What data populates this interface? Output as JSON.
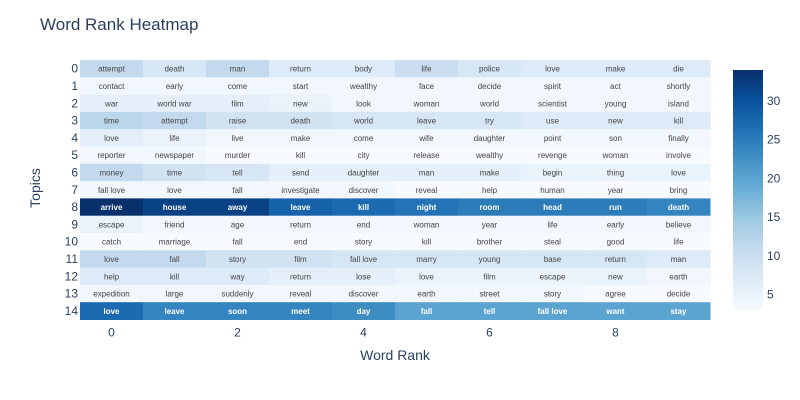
{
  "chart_data": {
    "type": "heatmap",
    "title": "Word Rank Heatmap",
    "xlabel": "Word Rank",
    "ylabel": "Topics",
    "x": [
      0,
      1,
      2,
      3,
      4,
      5,
      6,
      7,
      8,
      9
    ],
    "x_tick_labels": [
      "0",
      "2",
      "4",
      "6",
      "8"
    ],
    "x_tick_values": [
      0,
      2,
      4,
      6,
      8
    ],
    "y": [
      0,
      1,
      2,
      3,
      4,
      5,
      6,
      7,
      8,
      9,
      10,
      11,
      12,
      13,
      14
    ],
    "y_tick_labels": [
      "0",
      "1",
      "2",
      "3",
      "4",
      "5",
      "6",
      "7",
      "8",
      "9",
      "10",
      "11",
      "12",
      "13",
      "14"
    ],
    "words": [
      [
        "attempt",
        "death",
        "man",
        "return",
        "body",
        "life",
        "police",
        "love",
        "make",
        "die"
      ],
      [
        "contact",
        "early",
        "come",
        "start",
        "wealthy",
        "face",
        "decide",
        "spirit",
        "act",
        "shortly"
      ],
      [
        "war",
        "world war",
        "film",
        "new",
        "look",
        "woman",
        "world",
        "scientist",
        "young",
        "island"
      ],
      [
        "time",
        "attempt",
        "raise",
        "death",
        "world",
        "leave",
        "try",
        "use",
        "new",
        "kill"
      ],
      [
        "love",
        "life",
        "live",
        "make",
        "come",
        "wife",
        "daughter",
        "point",
        "son",
        "finally"
      ],
      [
        "reporter",
        "newspaper",
        "murder",
        "kill",
        "city",
        "release",
        "wealthy",
        "revenge",
        "woman",
        "involve"
      ],
      [
        "money",
        "time",
        "tell",
        "send",
        "daughter",
        "man",
        "make",
        "begin",
        "thing",
        "love"
      ],
      [
        "fall love",
        "love",
        "fall",
        "investigate",
        "discover",
        "reveal",
        "help",
        "human",
        "year",
        "bring"
      ],
      [
        "arrive",
        "house",
        "away",
        "leave",
        "kill",
        "night",
        "room",
        "head",
        "run",
        "death"
      ],
      [
        "escape",
        "friend",
        "age",
        "return",
        "end",
        "woman",
        "year",
        "life",
        "early",
        "believe"
      ],
      [
        "catch",
        "marriage",
        "fall",
        "end",
        "story",
        "kill",
        "brother",
        "steal",
        "good",
        "life"
      ],
      [
        "love",
        "fall",
        "story",
        "film",
        "fall love",
        "marry",
        "young",
        "base",
        "return",
        "man"
      ],
      [
        "help",
        "kill",
        "way",
        "return",
        "lose",
        "love",
        "film",
        "escape",
        "new",
        "earth"
      ],
      [
        "expedition",
        "large",
        "suddenly",
        "reveal",
        "discover",
        "earth",
        "street",
        "story",
        "agree",
        "decide"
      ],
      [
        "love",
        "leave",
        "soon",
        "meet",
        "day",
        "fall",
        "tell",
        "fall love",
        "want",
        "stay"
      ]
    ],
    "values": [
      [
        11,
        8,
        11,
        7,
        7,
        10,
        8,
        7,
        7,
        7
      ],
      [
        4,
        4,
        4,
        4,
        4,
        4,
        4,
        4,
        4,
        4
      ],
      [
        6,
        6,
        6,
        5,
        4,
        4,
        4,
        4,
        4,
        4
      ],
      [
        12,
        11,
        9,
        9,
        8,
        8,
        8,
        7,
        7,
        7
      ],
      [
        6,
        5,
        4,
        4,
        4,
        4,
        4,
        4,
        4,
        4
      ],
      [
        4,
        4,
        3,
        3,
        3,
        3,
        3,
        3,
        3,
        3
      ],
      [
        11,
        9,
        8,
        6,
        6,
        6,
        6,
        5,
        5,
        5
      ],
      [
        4,
        4,
        4,
        4,
        4,
        3,
        3,
        3,
        3,
        3
      ],
      [
        34,
        32,
        32,
        28,
        27,
        26,
        25,
        25,
        25,
        24
      ],
      [
        5,
        4,
        4,
        4,
        4,
        4,
        4,
        4,
        4,
        4
      ],
      [
        3,
        3,
        3,
        3,
        3,
        3,
        3,
        3,
        3,
        3
      ],
      [
        11,
        11,
        9,
        9,
        8,
        8,
        8,
        8,
        8,
        7
      ],
      [
        7,
        7,
        7,
        6,
        6,
        5,
        5,
        5,
        5,
        4
      ],
      [
        4,
        4,
        4,
        4,
        4,
        4,
        4,
        4,
        3,
        3
      ],
      [
        27,
        24,
        24,
        24,
        23,
        20,
        20,
        20,
        20,
        20
      ]
    ],
    "zmin": 3,
    "zmax": 34,
    "colorscale": "Blues",
    "colorbar_ticks": [
      5,
      10,
      15,
      20,
      25,
      30
    ],
    "grid": false
  }
}
